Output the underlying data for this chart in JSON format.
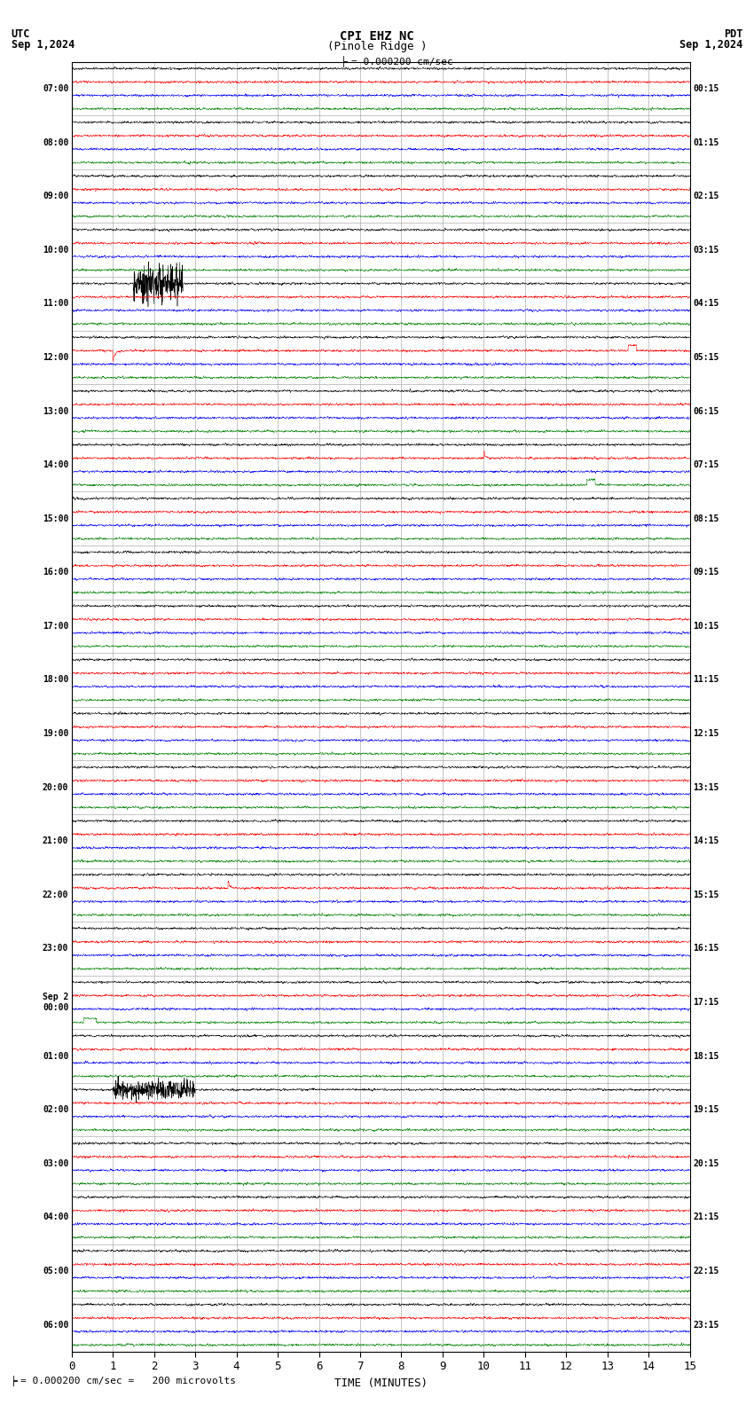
{
  "title_line1": "CPI EHZ NC",
  "title_line2": "(Pinole Ridge )",
  "scale_text": "= 0.000200 cm/sec",
  "footer_text": "= 0.000200 cm/sec =   200 microvolts",
  "utc_label": "UTC",
  "utc_date": "Sep 1,2024",
  "pdt_label": "PDT",
  "pdt_date": "Sep 1,2024",
  "xlabel": "TIME (MINUTES)",
  "bg_color": "#ffffff",
  "trace_colors": [
    "black",
    "red",
    "blue",
    "green"
  ],
  "time_labels_left": [
    "07:00",
    "08:00",
    "09:00",
    "10:00",
    "11:00",
    "12:00",
    "13:00",
    "14:00",
    "15:00",
    "16:00",
    "17:00",
    "18:00",
    "19:00",
    "20:00",
    "21:00",
    "22:00",
    "23:00",
    "Sep 2\n00:00",
    "01:00",
    "02:00",
    "03:00",
    "04:00",
    "05:00",
    "06:00"
  ],
  "time_labels_right": [
    "00:15",
    "01:15",
    "02:15",
    "03:15",
    "04:15",
    "05:15",
    "06:15",
    "07:15",
    "08:15",
    "09:15",
    "10:15",
    "11:15",
    "12:15",
    "13:15",
    "14:15",
    "15:15",
    "16:15",
    "17:15",
    "18:15",
    "19:15",
    "20:15",
    "21:15",
    "22:15",
    "23:15"
  ],
  "n_rows": 24,
  "traces_per_row": 4,
  "minutes_per_row": 15,
  "xlim": [
    0,
    15
  ],
  "xticks": [
    0,
    1,
    2,
    3,
    4,
    5,
    6,
    7,
    8,
    9,
    10,
    11,
    12,
    13,
    14,
    15
  ],
  "noise_amplitude": 0.06,
  "noise_seed": 42,
  "linewidth": 0.35
}
